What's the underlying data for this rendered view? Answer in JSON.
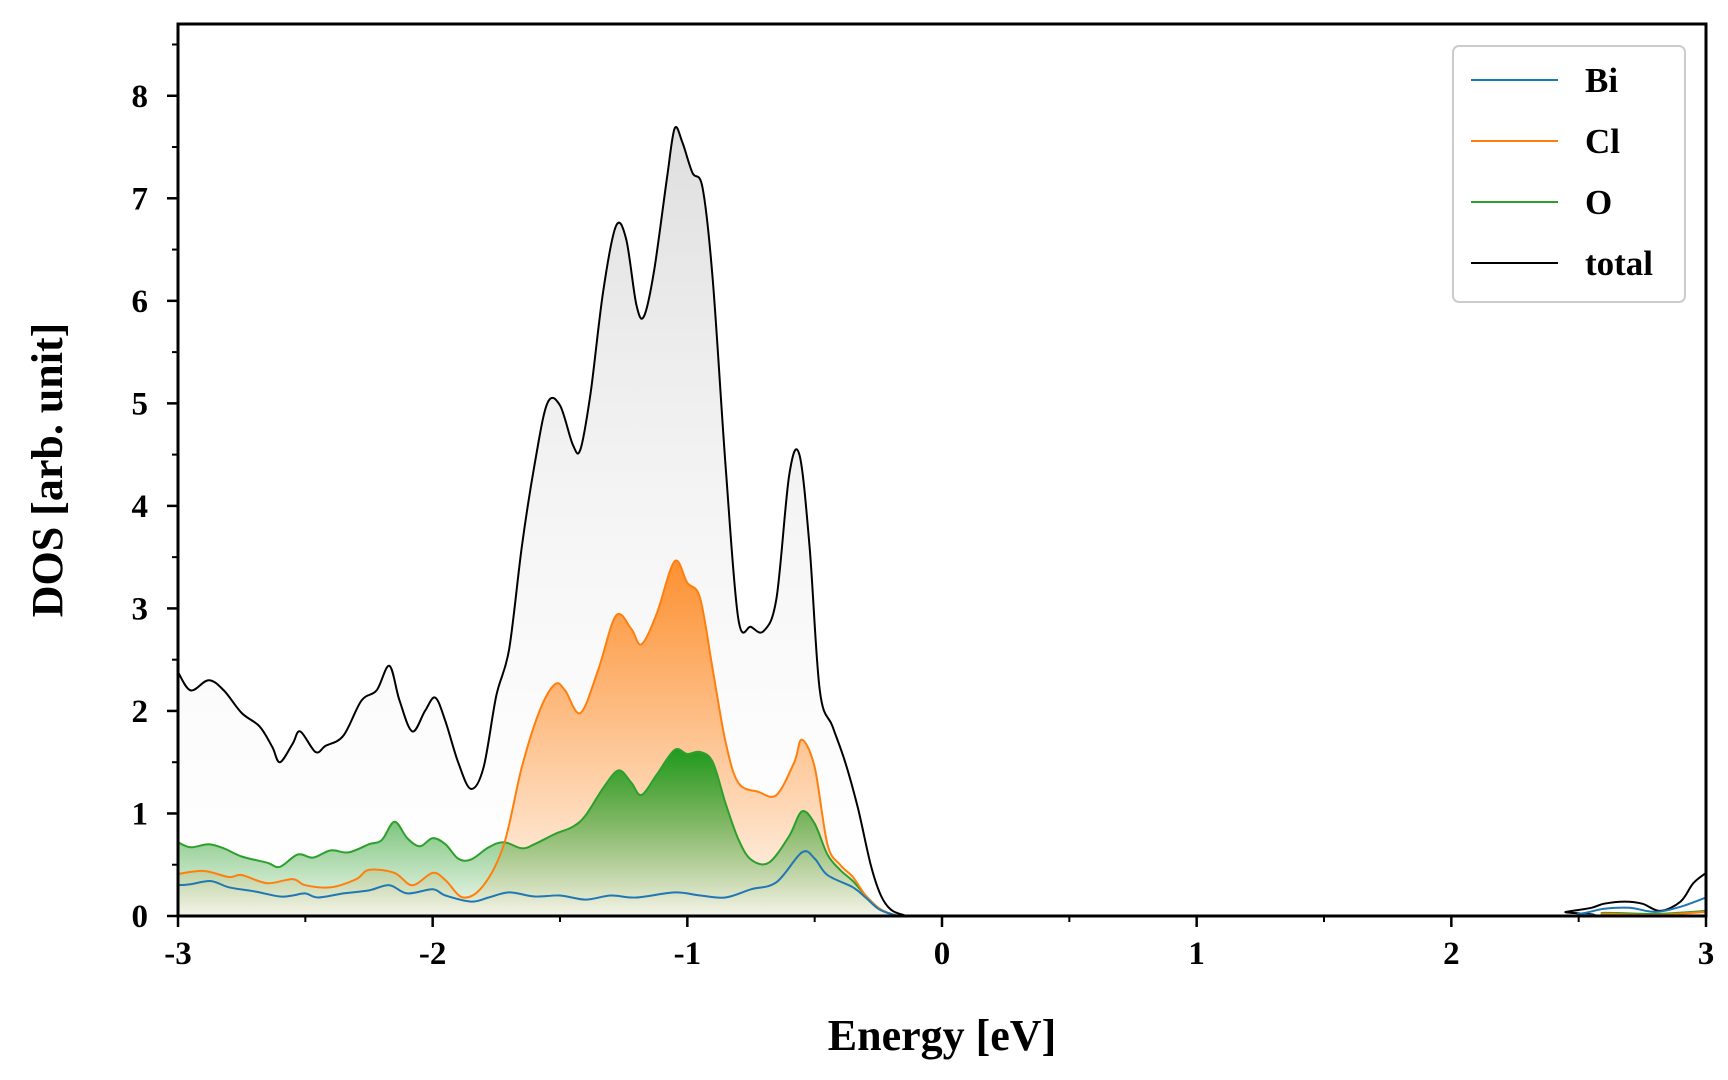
{
  "chart_data": {
    "type": "line",
    "title": "",
    "xlabel": "Energy [eV]",
    "ylabel": "DOS [arb. unit]",
    "xlim": [
      -3,
      3
    ],
    "ylim": [
      0,
      8.7
    ],
    "x_ticks": [
      "-3",
      "-2",
      "-1",
      "0",
      "1",
      "2",
      "3"
    ],
    "y_ticks": [
      "0",
      "1",
      "2",
      "3",
      "4",
      "5",
      "6",
      "7",
      "8"
    ],
    "grid": false,
    "legend_position": "top-right",
    "series": [
      {
        "name": "Bi",
        "color": "#1f77b4",
        "fill": false,
        "points": [
          [
            -3.0,
            0.3
          ],
          [
            -2.95,
            0.31
          ],
          [
            -2.87,
            0.34
          ],
          [
            -2.8,
            0.28
          ],
          [
            -2.7,
            0.24
          ],
          [
            -2.6,
            0.19
          ],
          [
            -2.55,
            0.2
          ],
          [
            -2.5,
            0.22
          ],
          [
            -2.45,
            0.18
          ],
          [
            -2.35,
            0.22
          ],
          [
            -2.25,
            0.25
          ],
          [
            -2.17,
            0.3
          ],
          [
            -2.1,
            0.22
          ],
          [
            -2.0,
            0.26
          ],
          [
            -1.95,
            0.2
          ],
          [
            -1.85,
            0.14
          ],
          [
            -1.78,
            0.18
          ],
          [
            -1.7,
            0.23
          ],
          [
            -1.6,
            0.19
          ],
          [
            -1.5,
            0.2
          ],
          [
            -1.4,
            0.16
          ],
          [
            -1.3,
            0.2
          ],
          [
            -1.2,
            0.18
          ],
          [
            -1.05,
            0.23
          ],
          [
            -0.95,
            0.2
          ],
          [
            -0.85,
            0.18
          ],
          [
            -0.75,
            0.26
          ],
          [
            -0.65,
            0.33
          ],
          [
            -0.55,
            0.62
          ],
          [
            -0.5,
            0.56
          ],
          [
            -0.45,
            0.4
          ],
          [
            -0.35,
            0.28
          ],
          [
            -0.3,
            0.18
          ],
          [
            -0.25,
            0.07
          ],
          [
            -0.2,
            0.02
          ],
          [
            -0.15,
            0.0
          ],
          [
            0.0,
            0.0
          ],
          [
            2.35,
            0.0
          ],
          [
            2.5,
            0.02
          ],
          [
            2.6,
            0.07
          ],
          [
            2.7,
            0.08
          ],
          [
            2.8,
            0.04
          ],
          [
            2.9,
            0.09
          ],
          [
            3.0,
            0.18
          ]
        ]
      },
      {
        "name": "Cl",
        "color": "#ff7f0e",
        "fill": true,
        "points": [
          [
            -3.0,
            0.41
          ],
          [
            -2.9,
            0.44
          ],
          [
            -2.8,
            0.38
          ],
          [
            -2.75,
            0.4
          ],
          [
            -2.65,
            0.32
          ],
          [
            -2.55,
            0.36
          ],
          [
            -2.5,
            0.3
          ],
          [
            -2.4,
            0.28
          ],
          [
            -2.3,
            0.36
          ],
          [
            -2.25,
            0.45
          ],
          [
            -2.15,
            0.42
          ],
          [
            -2.08,
            0.3
          ],
          [
            -2.0,
            0.42
          ],
          [
            -1.95,
            0.35
          ],
          [
            -1.88,
            0.18
          ],
          [
            -1.8,
            0.3
          ],
          [
            -1.72,
            0.7
          ],
          [
            -1.65,
            1.45
          ],
          [
            -1.58,
            2.0
          ],
          [
            -1.52,
            2.26
          ],
          [
            -1.48,
            2.2
          ],
          [
            -1.42,
            1.98
          ],
          [
            -1.35,
            2.4
          ],
          [
            -1.28,
            2.93
          ],
          [
            -1.22,
            2.8
          ],
          [
            -1.18,
            2.65
          ],
          [
            -1.12,
            2.95
          ],
          [
            -1.05,
            3.46
          ],
          [
            -1.0,
            3.25
          ],
          [
            -0.95,
            3.1
          ],
          [
            -0.9,
            2.4
          ],
          [
            -0.85,
            1.7
          ],
          [
            -0.8,
            1.3
          ],
          [
            -0.72,
            1.21
          ],
          [
            -0.65,
            1.18
          ],
          [
            -0.58,
            1.5
          ],
          [
            -0.55,
            1.72
          ],
          [
            -0.5,
            1.45
          ],
          [
            -0.45,
            0.7
          ],
          [
            -0.4,
            0.5
          ],
          [
            -0.35,
            0.38
          ],
          [
            -0.3,
            0.2
          ],
          [
            -0.25,
            0.08
          ],
          [
            -0.2,
            0.02
          ],
          [
            -0.15,
            0.0
          ],
          [
            0.0,
            0.0
          ],
          [
            2.4,
            0.0
          ],
          [
            2.6,
            0.02
          ],
          [
            2.8,
            0.01
          ],
          [
            3.0,
            0.04
          ]
        ]
      },
      {
        "name": "O",
        "color": "#2ca02c",
        "fill": true,
        "points": [
          [
            -3.0,
            0.72
          ],
          [
            -2.95,
            0.67
          ],
          [
            -2.88,
            0.7
          ],
          [
            -2.82,
            0.66
          ],
          [
            -2.75,
            0.58
          ],
          [
            -2.65,
            0.52
          ],
          [
            -2.6,
            0.48
          ],
          [
            -2.53,
            0.6
          ],
          [
            -2.47,
            0.57
          ],
          [
            -2.4,
            0.64
          ],
          [
            -2.33,
            0.62
          ],
          [
            -2.25,
            0.7
          ],
          [
            -2.2,
            0.74
          ],
          [
            -2.15,
            0.92
          ],
          [
            -2.1,
            0.76
          ],
          [
            -2.05,
            0.68
          ],
          [
            -2.0,
            0.76
          ],
          [
            -1.95,
            0.7
          ],
          [
            -1.9,
            0.56
          ],
          [
            -1.85,
            0.55
          ],
          [
            -1.78,
            0.67
          ],
          [
            -1.72,
            0.72
          ],
          [
            -1.65,
            0.66
          ],
          [
            -1.6,
            0.7
          ],
          [
            -1.52,
            0.8
          ],
          [
            -1.45,
            0.87
          ],
          [
            -1.4,
            0.98
          ],
          [
            -1.33,
            1.25
          ],
          [
            -1.27,
            1.42
          ],
          [
            -1.22,
            1.3
          ],
          [
            -1.18,
            1.18
          ],
          [
            -1.12,
            1.38
          ],
          [
            -1.05,
            1.62
          ],
          [
            -1.0,
            1.58
          ],
          [
            -0.95,
            1.6
          ],
          [
            -0.9,
            1.5
          ],
          [
            -0.85,
            1.1
          ],
          [
            -0.8,
            0.75
          ],
          [
            -0.75,
            0.55
          ],
          [
            -0.68,
            0.52
          ],
          [
            -0.6,
            0.78
          ],
          [
            -0.55,
            1.02
          ],
          [
            -0.5,
            0.9
          ],
          [
            -0.45,
            0.6
          ],
          [
            -0.4,
            0.45
          ],
          [
            -0.35,
            0.34
          ],
          [
            -0.3,
            0.2
          ],
          [
            -0.25,
            0.08
          ],
          [
            -0.2,
            0.02
          ],
          [
            -0.15,
            0.0
          ],
          [
            0.0,
            0.0
          ],
          [
            2.4,
            0.0
          ],
          [
            2.6,
            0.03
          ],
          [
            2.8,
            0.02
          ],
          [
            3.0,
            0.05
          ]
        ]
      },
      {
        "name": "total",
        "color": "#000000",
        "fill": true,
        "points": [
          [
            -3.0,
            2.38
          ],
          [
            -2.95,
            2.2
          ],
          [
            -2.88,
            2.3
          ],
          [
            -2.82,
            2.2
          ],
          [
            -2.75,
            1.98
          ],
          [
            -2.68,
            1.85
          ],
          [
            -2.63,
            1.65
          ],
          [
            -2.6,
            1.5
          ],
          [
            -2.55,
            1.68
          ],
          [
            -2.52,
            1.8
          ],
          [
            -2.46,
            1.6
          ],
          [
            -2.42,
            1.66
          ],
          [
            -2.35,
            1.76
          ],
          [
            -2.28,
            2.1
          ],
          [
            -2.22,
            2.2
          ],
          [
            -2.17,
            2.44
          ],
          [
            -2.13,
            2.1
          ],
          [
            -2.08,
            1.8
          ],
          [
            -2.03,
            2.0
          ],
          [
            -1.99,
            2.13
          ],
          [
            -1.95,
            1.9
          ],
          [
            -1.9,
            1.5
          ],
          [
            -1.85,
            1.24
          ],
          [
            -1.8,
            1.45
          ],
          [
            -1.75,
            2.15
          ],
          [
            -1.7,
            2.6
          ],
          [
            -1.65,
            3.6
          ],
          [
            -1.6,
            4.4
          ],
          [
            -1.55,
            5.0
          ],
          [
            -1.5,
            4.98
          ],
          [
            -1.45,
            4.6
          ],
          [
            -1.42,
            4.55
          ],
          [
            -1.38,
            5.1
          ],
          [
            -1.33,
            6.1
          ],
          [
            -1.28,
            6.73
          ],
          [
            -1.24,
            6.6
          ],
          [
            -1.2,
            5.96
          ],
          [
            -1.17,
            5.85
          ],
          [
            -1.13,
            6.3
          ],
          [
            -1.08,
            7.2
          ],
          [
            -1.05,
            7.68
          ],
          [
            -1.02,
            7.55
          ],
          [
            -0.98,
            7.25
          ],
          [
            -0.94,
            7.1
          ],
          [
            -0.9,
            6.2
          ],
          [
            -0.85,
            4.4
          ],
          [
            -0.8,
            2.9
          ],
          [
            -0.75,
            2.82
          ],
          [
            -0.7,
            2.78
          ],
          [
            -0.65,
            3.1
          ],
          [
            -0.6,
            4.3
          ],
          [
            -0.56,
            4.5
          ],
          [
            -0.52,
            3.6
          ],
          [
            -0.48,
            2.2
          ],
          [
            -0.43,
            1.85
          ],
          [
            -0.38,
            1.5
          ],
          [
            -0.33,
            1.05
          ],
          [
            -0.28,
            0.5
          ],
          [
            -0.24,
            0.2
          ],
          [
            -0.2,
            0.06
          ],
          [
            -0.15,
            0.01
          ],
          [
            -0.1,
            0.0
          ],
          [
            2.35,
            0.0
          ],
          [
            2.45,
            0.04
          ],
          [
            2.55,
            0.08
          ],
          [
            2.6,
            0.12
          ],
          [
            2.68,
            0.14
          ],
          [
            2.75,
            0.12
          ],
          [
            2.82,
            0.05
          ],
          [
            2.9,
            0.14
          ],
          [
            2.95,
            0.32
          ],
          [
            3.0,
            0.42
          ]
        ]
      }
    ]
  }
}
